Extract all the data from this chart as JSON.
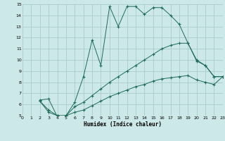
{
  "xlabel": "Humidex (Indice chaleur)",
  "bg_color": "#cce8e8",
  "grid_color": "#aacccc",
  "line_color": "#1e6b5a",
  "xlim": [
    0,
    23
  ],
  "ylim": [
    5,
    15
  ],
  "xticks": [
    0,
    1,
    2,
    3,
    4,
    5,
    6,
    7,
    8,
    9,
    10,
    11,
    12,
    13,
    14,
    15,
    16,
    17,
    18,
    19,
    20,
    21,
    22,
    23
  ],
  "yticks": [
    5,
    6,
    7,
    8,
    9,
    10,
    11,
    12,
    13,
    14,
    15
  ],
  "series1_x": [
    2,
    3,
    4,
    5,
    6,
    7,
    8,
    9,
    10,
    11,
    12,
    13,
    14,
    15,
    16,
    17,
    18,
    19,
    20,
    21,
    22,
    23
  ],
  "series1_y": [
    6.4,
    6.5,
    4.9,
    5.0,
    6.2,
    8.5,
    11.8,
    9.5,
    14.8,
    13.0,
    14.8,
    14.8,
    14.1,
    14.7,
    14.7,
    14.0,
    13.2,
    11.5,
    9.9,
    9.5,
    8.5,
    8.5
  ],
  "series2_x": [
    2,
    3,
    4,
    5,
    6,
    7,
    8,
    9,
    10,
    11,
    12,
    13,
    14,
    15,
    16,
    17,
    18,
    19,
    20,
    21,
    22,
    23
  ],
  "series2_y": [
    6.3,
    5.5,
    5.0,
    5.0,
    5.8,
    6.2,
    6.8,
    7.4,
    8.0,
    8.5,
    9.0,
    9.5,
    10.0,
    10.5,
    11.0,
    11.3,
    11.5,
    11.5,
    10.0,
    9.5,
    8.5,
    8.5
  ],
  "series3_x": [
    2,
    3,
    4,
    5,
    6,
    7,
    8,
    9,
    10,
    11,
    12,
    13,
    14,
    15,
    16,
    17,
    18,
    19,
    20,
    21,
    22,
    23
  ],
  "series3_y": [
    6.3,
    5.3,
    5.0,
    5.0,
    5.3,
    5.5,
    5.9,
    6.3,
    6.7,
    7.0,
    7.3,
    7.6,
    7.8,
    8.1,
    8.3,
    8.4,
    8.5,
    8.6,
    8.2,
    8.0,
    7.8,
    8.5
  ]
}
